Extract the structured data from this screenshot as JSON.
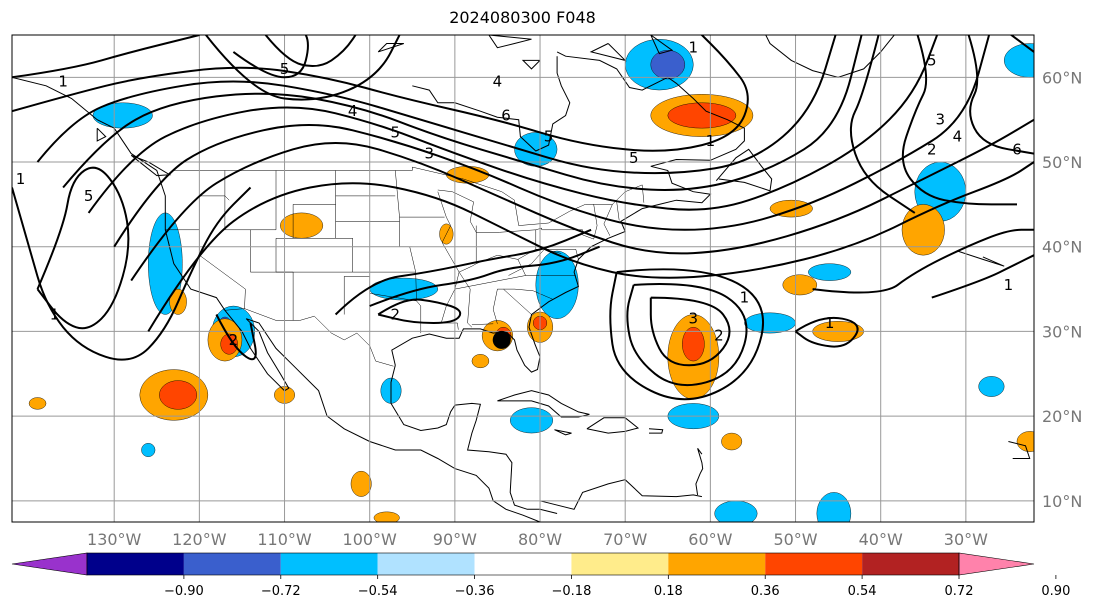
{
  "title": "2024080300 F048",
  "map": {
    "projection": "PlateCarree",
    "lon_range": [
      -142,
      -22
    ],
    "lat_range": [
      7.5,
      65
    ],
    "lon_ticks": [
      {
        "value": -130,
        "label": "130°W"
      },
      {
        "value": -120,
        "label": "120°W"
      },
      {
        "value": -110,
        "label": "110°W"
      },
      {
        "value": -100,
        "label": "100°W"
      },
      {
        "value": -90,
        "label": "90°W"
      },
      {
        "value": -80,
        "label": "80°W"
      },
      {
        "value": -70,
        "label": "70°W"
      },
      {
        "value": -60,
        "label": "60°W"
      },
      {
        "value": -50,
        "label": "50°W"
      },
      {
        "value": -40,
        "label": "40°W"
      },
      {
        "value": -30,
        "label": "30°W"
      }
    ],
    "lat_ticks": [
      {
        "value": 60,
        "label": "60°N"
      },
      {
        "value": 50,
        "label": "50°N"
      },
      {
        "value": 40,
        "label": "40°N"
      },
      {
        "value": 30,
        "label": "30°N"
      },
      {
        "value": 20,
        "label": "20°N"
      },
      {
        "value": 10,
        "label": "10°N"
      }
    ],
    "grid": true,
    "storm_marker": {
      "lon": -84.5,
      "lat": 29
    }
  },
  "contour_labels": [
    {
      "text": "1",
      "lon": -136,
      "lat": 59.5
    },
    {
      "text": "1",
      "lon": -141,
      "lat": 48
    },
    {
      "text": "5",
      "lon": -133,
      "lat": 46
    },
    {
      "text": "1",
      "lon": -137,
      "lat": 32
    },
    {
      "text": "5",
      "lon": -110,
      "lat": 61
    },
    {
      "text": "4",
      "lon": -102,
      "lat": 56
    },
    {
      "text": "5",
      "lon": -97,
      "lat": 53.5
    },
    {
      "text": "3",
      "lon": -93,
      "lat": 51
    },
    {
      "text": "4",
      "lon": -85,
      "lat": 59.5
    },
    {
      "text": "5",
      "lon": -79,
      "lat": 53
    },
    {
      "text": "6",
      "lon": -84,
      "lat": 55.5
    },
    {
      "text": "5",
      "lon": -69,
      "lat": 50.5
    },
    {
      "text": "1",
      "lon": -60,
      "lat": 52.5
    },
    {
      "text": "2",
      "lon": -97,
      "lat": 32
    },
    {
      "text": "3",
      "lon": -62,
      "lat": 31.5
    },
    {
      "text": "2",
      "lon": -59,
      "lat": 29.5
    },
    {
      "text": "1",
      "lon": -56,
      "lat": 34
    },
    {
      "text": "1",
      "lon": -46,
      "lat": 31
    },
    {
      "text": "5",
      "lon": -34,
      "lat": 62
    },
    {
      "text": "3",
      "lon": -33,
      "lat": 55
    },
    {
      "text": "4",
      "lon": -31,
      "lat": 53
    },
    {
      "text": "2",
      "lon": -34,
      "lat": 51.5
    },
    {
      "text": "6",
      "lon": -24,
      "lat": 51.5
    },
    {
      "text": "1",
      "lon": -25,
      "lat": 35.5
    },
    {
      "text": "2",
      "lon": -116,
      "lat": 29
    },
    {
      "text": "1",
      "lon": -62,
      "lat": 63.5
    }
  ],
  "colorbar": {
    "colors": [
      "#9932cc",
      "#00008b",
      "#3a5fcd",
      "#00bfff",
      "#b0e2ff",
      "#ffffff",
      "#ffec8b",
      "#ffa500",
      "#ff4500",
      "#b22222",
      "#ff82ab"
    ],
    "tick_values": [
      -0.9,
      -0.72,
      -0.54,
      -0.36,
      -0.18,
      0.18,
      0.36,
      0.54,
      0.72,
      0.9
    ],
    "tick_labels": [
      "−0.90",
      "−0.72",
      "−0.54",
      "−0.36",
      "−0.18",
      "0.18",
      "0.36",
      "0.54",
      "0.72",
      "0.90"
    ],
    "extend": "both"
  },
  "shaded_areas": [
    {
      "level": "#00bfff",
      "lon": -129,
      "lat": 55.5,
      "rlon": 3.5,
      "rlat": 1.5
    },
    {
      "level": "#00bfff",
      "lon": -124,
      "lat": 38,
      "rlon": 2,
      "rlat": 6
    },
    {
      "level": "#00bfff",
      "lon": -116,
      "lat": 30,
      "rlon": 2.5,
      "rlat": 3
    },
    {
      "level": "#3a5fcd",
      "lon": -117,
      "lat": 30.5,
      "rlon": 0.8,
      "rlat": 1.2
    },
    {
      "level": "#00bfff",
      "lon": -96,
      "lat": 35,
      "rlon": 4,
      "rlat": 1.3
    },
    {
      "level": "#00bfff",
      "lon": -78,
      "lat": 35.5,
      "rlon": 2.5,
      "rlat": 4
    },
    {
      "level": "#00bfff",
      "lon": -80.5,
      "lat": 51.5,
      "rlon": 2.5,
      "rlat": 2
    },
    {
      "level": "#00bfff",
      "lon": -66,
      "lat": 61.5,
      "rlon": 4,
      "rlat": 3
    },
    {
      "level": "#3a5fcd",
      "lon": -65,
      "lat": 61.5,
      "rlon": 2,
      "rlat": 1.7
    },
    {
      "level": "#00bfff",
      "lon": -53,
      "lat": 31,
      "rlon": 3,
      "rlat": 1.2
    },
    {
      "level": "#00bfff",
      "lon": -46,
      "lat": 37,
      "rlon": 2.5,
      "rlat": 1
    },
    {
      "level": "#00bfff",
      "lon": -33,
      "lat": 46.5,
      "rlon": 3,
      "rlat": 3.5
    },
    {
      "level": "#00bfff",
      "lon": -22.5,
      "lat": 62,
      "rlon": 3,
      "rlat": 2
    },
    {
      "level": "#00bfff",
      "lon": -62,
      "lat": 20,
      "rlon": 3,
      "rlat": 1.5
    },
    {
      "level": "#00bfff",
      "lon": -81,
      "lat": 19.5,
      "rlon": 2.5,
      "rlat": 1.5
    },
    {
      "level": "#00bfff",
      "lon": -57,
      "lat": 8.5,
      "rlon": 2.5,
      "rlat": 1.5
    },
    {
      "level": "#00bfff",
      "lon": -45.5,
      "lat": 8.5,
      "rlon": 2,
      "rlat": 2.5
    },
    {
      "level": "#00bfff",
      "lon": -27,
      "lat": 23.5,
      "rlon": 1.5,
      "rlat": 1.2
    },
    {
      "level": "#00bfff",
      "lon": -97.5,
      "lat": 23,
      "rlon": 1.2,
      "rlat": 1.5
    },
    {
      "level": "#00bfff",
      "lon": -126,
      "lat": 16,
      "rlon": 0.8,
      "rlat": 0.8
    },
    {
      "level": "#ffa500",
      "lon": -83,
      "lat": 55.5,
      "rlon": 0,
      "rlat": 0
    },
    {
      "level": "#ffa500",
      "lon": -61,
      "lat": 55.5,
      "rlon": 6,
      "rlat": 2.5
    },
    {
      "level": "#ff4500",
      "lon": -61,
      "lat": 55.5,
      "rlon": 4,
      "rlat": 1.5
    },
    {
      "level": "#ffa500",
      "lon": -88.5,
      "lat": 48.5,
      "rlon": 2.5,
      "rlat": 1
    },
    {
      "level": "#ffa500",
      "lon": -108,
      "lat": 42.5,
      "rlon": 2.5,
      "rlat": 1.5
    },
    {
      "level": "#ffa500",
      "lon": -91,
      "lat": 41.5,
      "rlon": 0.8,
      "rlat": 1.2
    },
    {
      "level": "#ffa500",
      "lon": -62,
      "lat": 27,
      "rlon": 3,
      "rlat": 5
    },
    {
      "level": "#ff4500",
      "lon": -62,
      "lat": 28.5,
      "rlon": 1.3,
      "rlat": 2
    },
    {
      "level": "#ffa500",
      "lon": -35,
      "lat": 42,
      "rlon": 2.5,
      "rlat": 3
    },
    {
      "level": "#ffa500",
      "lon": -45,
      "lat": 30,
      "rlon": 3,
      "rlat": 1.2
    },
    {
      "level": "#ffa500",
      "lon": -49.5,
      "lat": 35.5,
      "rlon": 2,
      "rlat": 1.2
    },
    {
      "level": "#ffa500",
      "lon": -50.5,
      "lat": 44.5,
      "rlon": 2.5,
      "rlat": 1
    },
    {
      "level": "#ffa500",
      "lon": -117,
      "lat": 29,
      "rlon": 2,
      "rlat": 2.5
    },
    {
      "level": "#ff4500",
      "lon": -116.5,
      "lat": 28.5,
      "rlon": 1,
      "rlat": 1.2
    },
    {
      "level": "#ffa500",
      "lon": -123,
      "lat": 22.5,
      "rlon": 4,
      "rlat": 3
    },
    {
      "level": "#ff4500",
      "lon": -122.5,
      "lat": 22.5,
      "rlon": 2.2,
      "rlat": 1.7
    },
    {
      "level": "#ffa500",
      "lon": -85,
      "lat": 29.5,
      "rlon": 1.8,
      "rlat": 1.8
    },
    {
      "level": "#ff4500",
      "lon": -84.3,
      "lat": 29.5,
      "rlon": 0.9,
      "rlat": 1
    },
    {
      "level": "#ffa500",
      "lon": -80,
      "lat": 30.5,
      "rlon": 1.5,
      "rlat": 1.8
    },
    {
      "level": "#ff4500",
      "lon": -80,
      "lat": 31,
      "rlon": 0.8,
      "rlat": 0.8
    },
    {
      "level": "#ffa500",
      "lon": -101,
      "lat": 12,
      "rlon": 1.2,
      "rlat": 1.5
    },
    {
      "level": "#ffa500",
      "lon": -139,
      "lat": 21.5,
      "rlon": 1,
      "rlat": 0.7
    },
    {
      "level": "#ffa500",
      "lon": -122.5,
      "lat": 33.5,
      "rlon": 1,
      "rlat": 1.5
    },
    {
      "level": "#ffa500",
      "lon": -57.5,
      "lat": 17,
      "rlon": 1.2,
      "rlat": 1
    },
    {
      "level": "#ffa500",
      "lon": -22.5,
      "lat": 17,
      "rlon": 1.5,
      "rlat": 1.2
    },
    {
      "level": "#ffa500",
      "lon": -110,
      "lat": 22.5,
      "rlon": 1.2,
      "rlat": 1
    },
    {
      "level": "#ffa500",
      "lon": -87,
      "lat": 26.5,
      "rlon": 1,
      "rlat": 0.8
    },
    {
      "level": "#ffa500",
      "lon": -98,
      "lat": 8,
      "rlon": 1.5,
      "rlat": 0.7
    }
  ]
}
